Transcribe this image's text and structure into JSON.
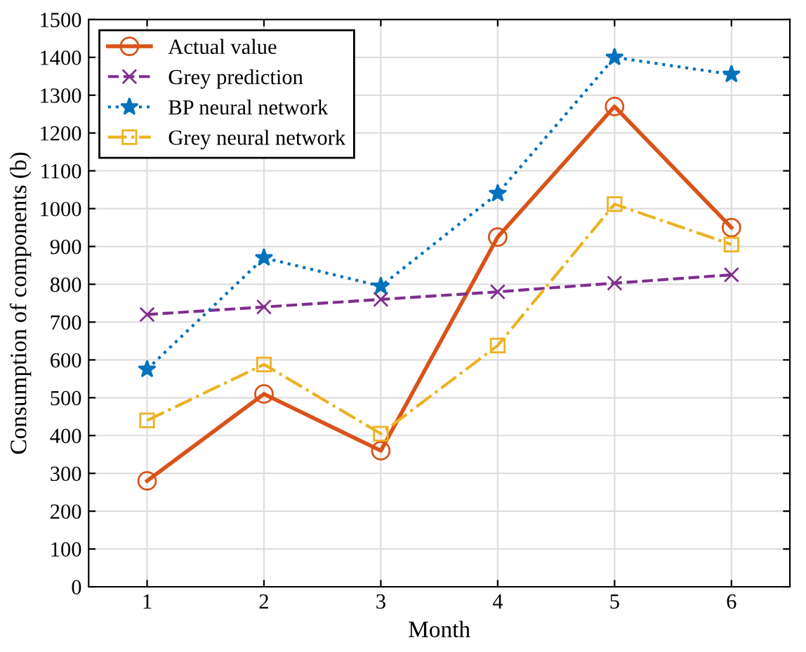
{
  "chart_data": {
    "type": "line",
    "xlabel": "Month",
    "ylabel": "Consumption of components (b)",
    "x": [
      1,
      2,
      3,
      4,
      5,
      6
    ],
    "xlim": [
      0.5,
      6.5
    ],
    "xticks": [
      1,
      2,
      3,
      4,
      5,
      6
    ],
    "ylim": [
      0,
      1500
    ],
    "yticks": [
      0,
      100,
      200,
      300,
      400,
      500,
      600,
      700,
      800,
      900,
      1000,
      1100,
      1200,
      1300,
      1400,
      1500
    ],
    "grid": true,
    "legend": "top left",
    "series": [
      {
        "name": "Actual value",
        "color": "#d95319",
        "marker": "circle",
        "line_style": "solid",
        "values": [
          280,
          510,
          360,
          925,
          1270,
          950
        ]
      },
      {
        "name": "Grey prediction",
        "color": "#7e2f8e",
        "marker": "cross",
        "line_style": "dashed",
        "values": [
          720,
          740,
          760,
          780,
          803,
          825
        ]
      },
      {
        "name": "BP neural network",
        "color": "#0072bd",
        "marker": "star",
        "line_style": "dotted",
        "values": [
          575,
          870,
          795,
          1040,
          1400,
          1355
        ]
      },
      {
        "name": "Grey neural network",
        "color": "#edb120",
        "marker": "square",
        "line_style": "dashdot",
        "values": [
          440,
          588,
          405,
          638,
          1012,
          905
        ]
      }
    ]
  }
}
